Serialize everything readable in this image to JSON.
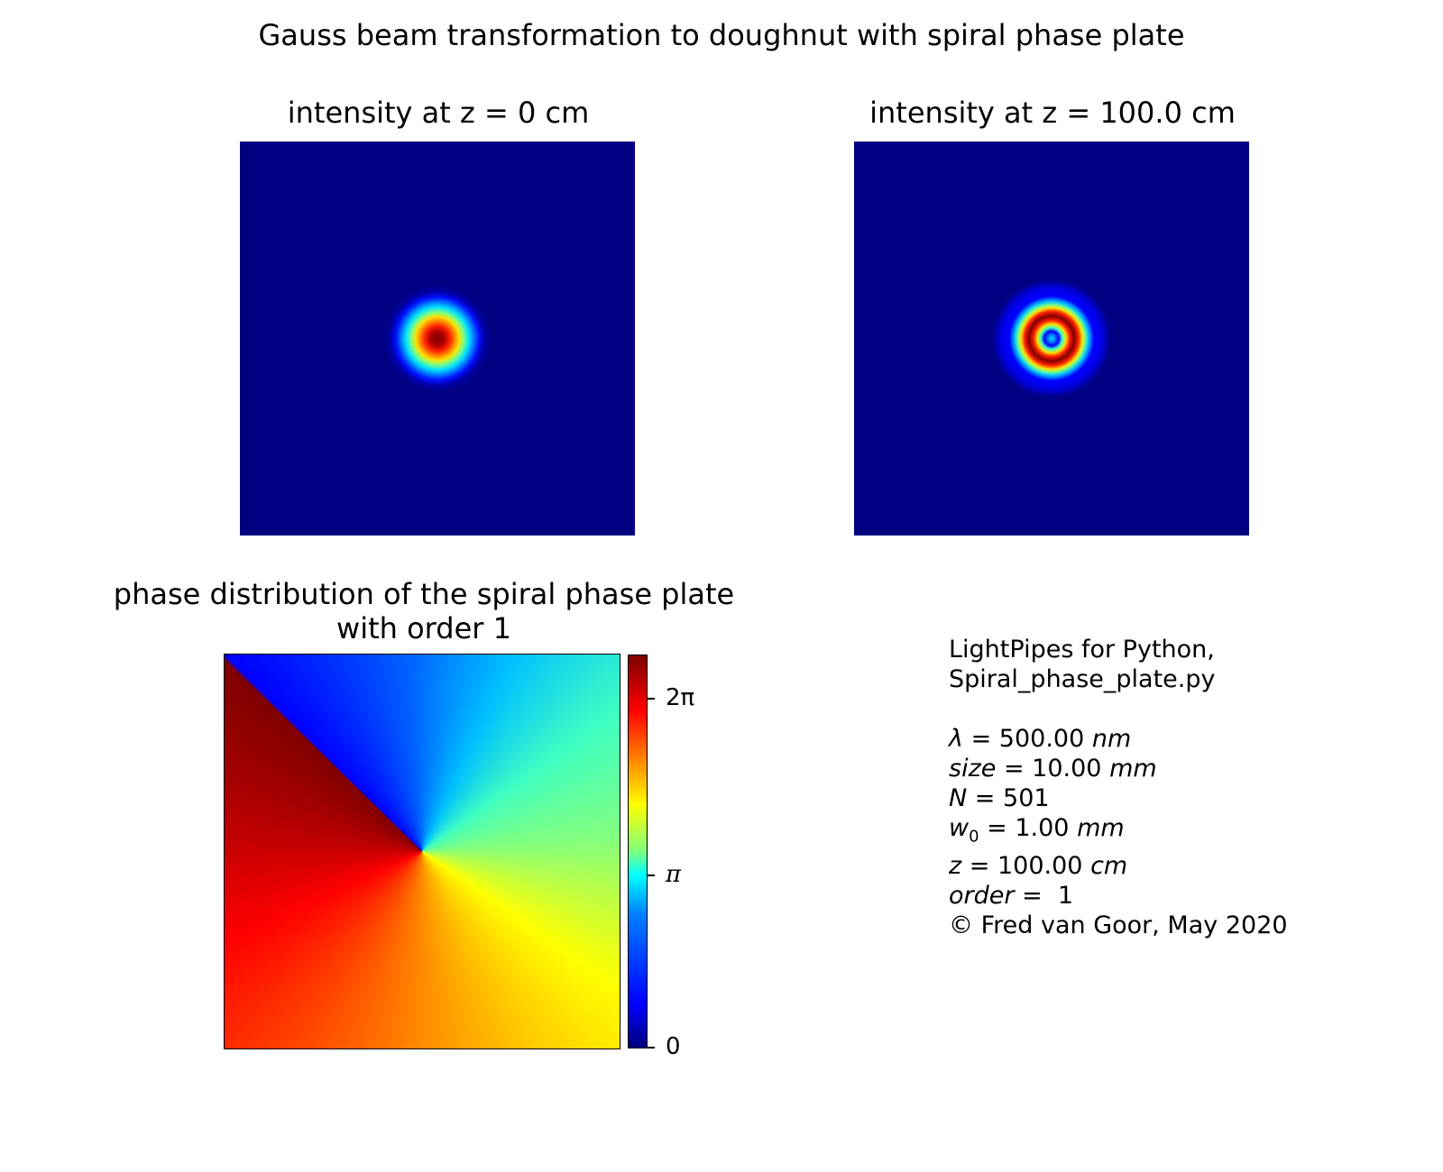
{
  "figure": {
    "suptitle": "Gauss beam transformation to doughnut with spiral phase plate"
  },
  "chart_data": [
    {
      "type": "heatmap",
      "title": "intensity at z = 0 cm",
      "colormap": "jet",
      "description_values": {
        "z_cm": 0,
        "pattern": "gaussian spot"
      }
    },
    {
      "type": "heatmap",
      "title": "intensity at z = 100.0 cm",
      "colormap": "jet",
      "description_values": {
        "z_cm": 100.0,
        "pattern": "doughnut rings"
      }
    },
    {
      "type": "heatmap",
      "title_line1": "phase distribution of the spiral phase plate",
      "title_line2": "with order 1",
      "colormap": "jet",
      "colorbar": {
        "ticks": [
          {
            "label": "0",
            "value": 0
          },
          {
            "label": "π",
            "value": 3.14159
          },
          {
            "label": "2π",
            "value": 6.28319
          }
        ],
        "range": [
          0,
          6.28319
        ]
      }
    }
  ],
  "info": {
    "line1": "LightPipes for Python,",
    "line2": "Spiral_phase_plate.py",
    "lambda_sym": "λ",
    "lambda_val": "500.00",
    "lambda_unit": "nm",
    "size_sym": "size",
    "size_val": "10.00",
    "size_unit": "mm",
    "N_sym": "N",
    "N_val": "501",
    "w0_sym": "w",
    "w0_sub": "0",
    "w0_val": "1.00",
    "w0_unit": "mm",
    "z_sym": "z",
    "z_val": "100.00",
    "z_unit": "cm",
    "order_sym": "order",
    "order_val": "1",
    "copyright": "© Fred van Goor, May 2020",
    "eq": "="
  }
}
